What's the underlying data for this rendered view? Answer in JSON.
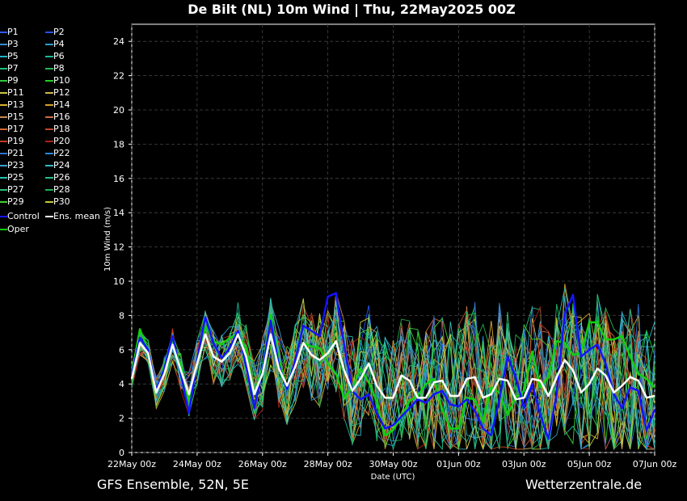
{
  "title": "De Bilt  (NL)  10m Wind | Thu, 22May2025 00Z",
  "footer": {
    "left": "GFS Ensemble, 52N, 5E",
    "right": "Wetterzentrale.de"
  },
  "legend": [
    {
      "label": "P1",
      "color": "#2a5cff"
    },
    {
      "label": "P2",
      "color": "#2255ee"
    },
    {
      "label": "P3",
      "color": "#3a8ccc"
    },
    {
      "label": "P4",
      "color": "#2f9fc8"
    },
    {
      "label": "P5",
      "color": "#1fb4c4"
    },
    {
      "label": "P6",
      "color": "#19b79a"
    },
    {
      "label": "P7",
      "color": "#1fbf7a"
    },
    {
      "label": "P8",
      "color": "#22b85a"
    },
    {
      "label": "P9",
      "color": "#30c840"
    },
    {
      "label": "P10",
      "color": "#20d020"
    },
    {
      "label": "P11",
      "color": "#c8c840"
    },
    {
      "label": "P12",
      "color": "#d0b848"
    },
    {
      "label": "P13",
      "color": "#d8b030"
    },
    {
      "label": "P14",
      "color": "#d8a028"
    },
    {
      "label": "P15",
      "color": "#c88850"
    },
    {
      "label": "P16",
      "color": "#c87040"
    },
    {
      "label": "P17",
      "color": "#d06838"
    },
    {
      "label": "P18",
      "color": "#c04828"
    },
    {
      "label": "P19",
      "color": "#c03c20"
    },
    {
      "label": "P20",
      "color": "#a82418"
    },
    {
      "label": "P21",
      "color": "#2f6fd0"
    },
    {
      "label": "P22",
      "color": "#2a88d8"
    },
    {
      "label": "P23",
      "color": "#3aa0d0"
    },
    {
      "label": "P24",
      "color": "#38b8c8"
    },
    {
      "label": "P25",
      "color": "#28c0b0"
    },
    {
      "label": "P26",
      "color": "#20c090"
    },
    {
      "label": "P27",
      "color": "#28c070"
    },
    {
      "label": "P28",
      "color": "#20b050"
    },
    {
      "label": "P29",
      "color": "#40d030"
    },
    {
      "label": "P30",
      "color": "#c8c838"
    },
    {
      "label": "Control",
      "color": "#1414ff"
    },
    {
      "label": "Ens. mean",
      "color": "#ffffff"
    },
    {
      "label": "Oper",
      "color": "#10d010"
    }
  ],
  "chart_data": {
    "type": "line",
    "title": "De Bilt  (NL)  10m Wind | Thu, 22May2025 00Z",
    "xlabel": "Date (UTC)",
    "ylabel": "10m Wind (m/s)",
    "ylim": [
      0,
      25
    ],
    "yticks": [
      0,
      2,
      4,
      6,
      8,
      10,
      12,
      14,
      16,
      18,
      20,
      22,
      24
    ],
    "xlim_hours": [
      0,
      384
    ],
    "xticks": [
      {
        "h": 0,
        "label": "22May 00z"
      },
      {
        "h": 48,
        "label": "24May 00z"
      },
      {
        "h": 96,
        "label": "26May 00z"
      },
      {
        "h": 144,
        "label": "28May 00z"
      },
      {
        "h": 192,
        "label": "30May 00z"
      },
      {
        "h": 240,
        "label": "01Jun 00z"
      },
      {
        "h": 288,
        "label": "03Jun 00z"
      },
      {
        "h": 336,
        "label": "05Jun 00z"
      },
      {
        "h": 384,
        "label": "07Jun 00z"
      }
    ],
    "grid": true,
    "step_hours": 6,
    "series": [
      {
        "name": "Ens. mean",
        "color": "#ffffff",
        "width": 2.5,
        "values": [
          4.3,
          6.4,
          5.8,
          3.5,
          4.6,
          6.3,
          4.8,
          3.4,
          5.2,
          6.9,
          5.6,
          5.3,
          5.8,
          6.9,
          5.6,
          3.4,
          4.6,
          6.9,
          4.9,
          3.9,
          5.0,
          6.4,
          5.7,
          5.4,
          5.8,
          6.5,
          4.8,
          3.6,
          4.3,
          5.2,
          3.9,
          3.2,
          3.2,
          4.5,
          4.2,
          3.2,
          3.2,
          4.1,
          4.2,
          3.3,
          3.3,
          4.3,
          4.4,
          3.2,
          3.4,
          4.3,
          4.2,
          3.1,
          3.2,
          4.3,
          4.2,
          3.3,
          4.4,
          5.4,
          4.8,
          3.5,
          4.0,
          4.9,
          4.5,
          3.5,
          3.9,
          4.4,
          4.2,
          3.2,
          3.3
        ]
      },
      {
        "name": "Control",
        "color": "#1414ff",
        "width": 2.5,
        "values": [
          4.5,
          6.7,
          6.0,
          3.6,
          4.9,
          6.8,
          4.6,
          2.3,
          5.4,
          7.9,
          6.4,
          5.5,
          6.1,
          7.1,
          5.1,
          2.6,
          4.8,
          7.7,
          5.1,
          3.7,
          5.4,
          7.4,
          7.1,
          6.8,
          9.1,
          9.3,
          6.3,
          3.6,
          3.1,
          3.4,
          2.3,
          1.4,
          1.6,
          2.1,
          2.6,
          3.1,
          2.9,
          3.4,
          3.6,
          2.8,
          2.7,
          3.1,
          2.4,
          1.4,
          1.0,
          3.1,
          5.6,
          4.4,
          2.6,
          4.0,
          2.2,
          0.8,
          3.4,
          8.1,
          9.2,
          5.6,
          6.0,
          6.3,
          5.2,
          3.4,
          2.6,
          3.8,
          3.6,
          1.3,
          2.5
        ]
      },
      {
        "name": "Oper",
        "color": "#10d010",
        "width": 2.5,
        "values": [
          4.6,
          7.2,
          6.0,
          3.5,
          5.1,
          6.6,
          5.1,
          3.0,
          5.3,
          7.4,
          6.5,
          6.3,
          6.7,
          6.9,
          6.1,
          3.4,
          5.0,
          8.0,
          5.4,
          3.8,
          5.0,
          6.4,
          6.2,
          6.1,
          5.2,
          4.6,
          3.2,
          3.8,
          4.9,
          4.1,
          3.0,
          1.0,
          1.3,
          2.1,
          3.0,
          3.3,
          4.0,
          4.3,
          2.5,
          1.4,
          1.4,
          3.2,
          3.1,
          1.8,
          3.8,
          3.5,
          2.2,
          3.2,
          3.6,
          5.9,
          3.8,
          4.4,
          6.5,
          6.4,
          5.7,
          5.8,
          7.6,
          7.6,
          6.6,
          6.6,
          6.8,
          5.6,
          4.6,
          4.3,
          3.8
        ]
      }
    ]
  }
}
